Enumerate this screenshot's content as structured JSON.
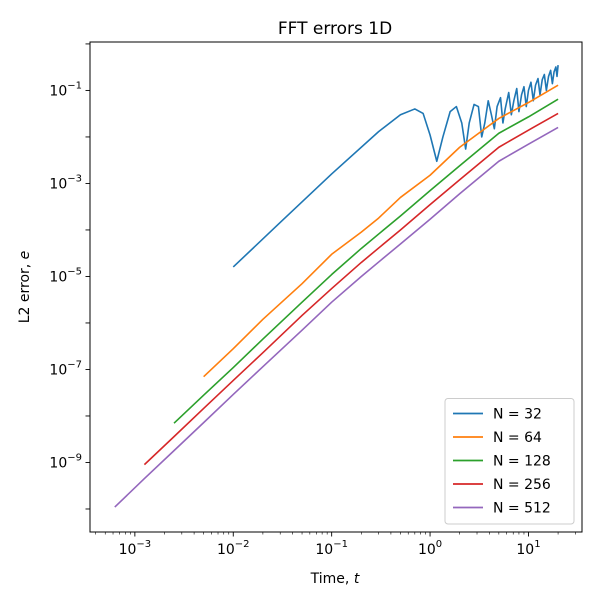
{
  "chart_data": {
    "type": "line",
    "title": "FFT errors 1D",
    "xlabel_text": "Time, ",
    "xlabel_var": "t",
    "ylabel_text": "L2 error, ",
    "ylabel_var": "e",
    "xscale": "log",
    "yscale": "log",
    "xlim": [
      0.00035,
      35
    ],
    "ylim": [
      3.2e-11,
      1.1
    ],
    "x_ticks": [
      {
        "value": 0.001,
        "base": "10",
        "exp": "−3"
      },
      {
        "value": 0.01,
        "base": "10",
        "exp": "−2"
      },
      {
        "value": 0.1,
        "base": "10",
        "exp": "−1"
      },
      {
        "value": 1,
        "base": "10",
        "exp": "0"
      },
      {
        "value": 10,
        "base": "10",
        "exp": "1"
      }
    ],
    "y_ticks": [
      {
        "value": 1e-09,
        "base": "10",
        "exp": "−9"
      },
      {
        "value": 1e-07,
        "base": "10",
        "exp": "−7"
      },
      {
        "value": 1e-05,
        "base": "10",
        "exp": "−5"
      },
      {
        "value": 0.001,
        "base": "10",
        "exp": "−3"
      },
      {
        "value": 0.1,
        "base": "10",
        "exp": "−1"
      }
    ],
    "grid": false,
    "legend_position": "lower-right",
    "series": [
      {
        "name": "N = 32",
        "color": "#1f77b4",
        "points": [
          [
            0.01,
            1.6e-05
          ],
          [
            0.03,
            0.000145
          ],
          [
            0.1,
            0.0016
          ],
          [
            0.3,
            0.013
          ],
          [
            0.5,
            0.03
          ],
          [
            0.7,
            0.04
          ],
          [
            0.85,
            0.032
          ],
          [
            1.0,
            0.011
          ],
          [
            1.17,
            0.003
          ],
          [
            1.35,
            0.01
          ],
          [
            1.6,
            0.035
          ],
          [
            1.85,
            0.045
          ],
          [
            2.1,
            0.02
          ],
          [
            2.3,
            0.0055
          ],
          [
            2.5,
            0.02
          ],
          [
            2.8,
            0.05
          ],
          [
            3.1,
            0.045
          ],
          [
            3.35,
            0.01
          ],
          [
            3.6,
            0.02
          ],
          [
            3.9,
            0.06
          ],
          [
            4.2,
            0.03
          ],
          [
            4.5,
            0.015
          ],
          [
            4.8,
            0.045
          ],
          [
            5.2,
            0.07
          ],
          [
            5.5,
            0.02
          ],
          [
            5.8,
            0.04
          ],
          [
            6.3,
            0.09
          ],
          [
            6.7,
            0.03
          ],
          [
            7.1,
            0.06
          ],
          [
            7.6,
            0.11
          ],
          [
            8.0,
            0.035
          ],
          [
            8.5,
            0.08
          ],
          [
            9.0,
            0.12
          ],
          [
            9.5,
            0.045
          ],
          [
            10.0,
            0.1
          ],
          [
            10.6,
            0.15
          ],
          [
            11.2,
            0.06
          ],
          [
            11.8,
            0.13
          ],
          [
            12.5,
            0.18
          ],
          [
            13.1,
            0.08
          ],
          [
            13.8,
            0.17
          ],
          [
            14.5,
            0.22
          ],
          [
            15.2,
            0.1
          ],
          [
            16.0,
            0.2
          ],
          [
            16.8,
            0.27
          ],
          [
            17.5,
            0.14
          ],
          [
            18.2,
            0.25
          ],
          [
            19.0,
            0.32
          ],
          [
            19.5,
            0.2
          ],
          [
            20.0,
            0.35
          ]
        ]
      },
      {
        "name": "N = 64",
        "color": "#ff7f0e",
        "points": [
          [
            0.005,
            7e-08
          ],
          [
            0.01,
            2.8e-07
          ],
          [
            0.02,
            1.2e-06
          ],
          [
            0.05,
            7e-06
          ],
          [
            0.1,
            3e-05
          ],
          [
            0.2,
            9e-05
          ],
          [
            0.3,
            0.00018
          ],
          [
            0.5,
            0.0005
          ],
          [
            1.0,
            0.0015
          ],
          [
            2.0,
            0.006
          ],
          [
            5.0,
            0.025
          ],
          [
            10.0,
            0.055
          ],
          [
            20.0,
            0.13
          ]
        ]
      },
      {
        "name": "N = 128",
        "color": "#2ca02c",
        "points": [
          [
            0.0025,
            7e-09
          ],
          [
            0.005,
            2.8e-08
          ],
          [
            0.01,
            1.1e-07
          ],
          [
            0.02,
            4.5e-07
          ],
          [
            0.05,
            2.8e-06
          ],
          [
            0.1,
            1.1e-05
          ],
          [
            0.2,
            4e-05
          ],
          [
            0.5,
            0.0002
          ],
          [
            1.0,
            0.0007
          ],
          [
            2.0,
            0.0024
          ],
          [
            5.0,
            0.012
          ],
          [
            10.0,
            0.027
          ],
          [
            20.0,
            0.065
          ]
        ]
      },
      {
        "name": "N = 256",
        "color": "#d62728",
        "points": [
          [
            0.00125,
            9e-10
          ],
          [
            0.0025,
            3.6e-09
          ],
          [
            0.005,
            1.45e-08
          ],
          [
            0.01,
            5.8e-08
          ],
          [
            0.02,
            2.3e-07
          ],
          [
            0.05,
            1.45e-06
          ],
          [
            0.1,
            5.5e-06
          ],
          [
            0.2,
            2e-05
          ],
          [
            0.5,
            0.0001
          ],
          [
            1.0,
            0.00035
          ],
          [
            2.0,
            0.0012
          ],
          [
            5.0,
            0.006
          ],
          [
            10.0,
            0.014
          ],
          [
            20.0,
            0.032
          ]
        ]
      },
      {
        "name": "N = 512",
        "color": "#9467bd",
        "points": [
          [
            0.000625,
            1.1e-10
          ],
          [
            0.00125,
            4.5e-10
          ],
          [
            0.0025,
            1.8e-09
          ],
          [
            0.005,
            7.2e-09
          ],
          [
            0.01,
            2.9e-08
          ],
          [
            0.02,
            1.15e-07
          ],
          [
            0.05,
            7e-07
          ],
          [
            0.1,
            2.8e-06
          ],
          [
            0.2,
            1e-05
          ],
          [
            0.5,
            5e-05
          ],
          [
            1.0,
            0.00017
          ],
          [
            2.0,
            0.0006
          ],
          [
            5.0,
            0.003
          ],
          [
            10.0,
            0.007
          ],
          [
            20.0,
            0.016
          ]
        ]
      }
    ]
  }
}
